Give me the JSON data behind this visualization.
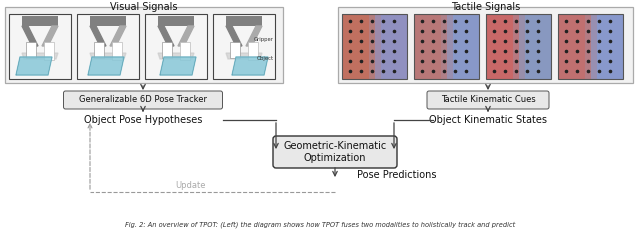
{
  "bg_color": "#ffffff",
  "visual_signals_label": "Visual Signals",
  "tactile_signals_label": "Tactile Signals",
  "gen_tracker_label": "Generalizable 6D Pose Tracker",
  "tactile_kinematic_label": "Tactile Kinematic Cues",
  "obj_pose_hyp_label": "Object Pose Hypotheses",
  "obj_kinematic_label": "Object Kinematic States",
  "geo_kinematic_label": "Geometric-Kinematic\nOptimization",
  "pose_pred_label": "Pose Predictions",
  "update_label": "Update",
  "caption": "Fig. 2: An overview of TPOT: (Left) the diagram shows how TPOT fuses two modalities to holistically track and predict",
  "arrow_color": "#444444",
  "dashed_color": "#999999",
  "text_color": "#111111",
  "box_fc": "#e8e8e8",
  "box_ec": "#555555",
  "vs_outer_fc": "#f2f2f2",
  "vs_outer_ec": "#aaaaaa",
  "sub_fc": "#f0f0f0",
  "sub_ec": "#444444",
  "gripper_dark": "#808080",
  "gripper_mid": "#aaaaaa",
  "gripper_light": "#cccccc",
  "obj_fc": "#88c8d8",
  "obj_ec": "#5599aa",
  "tac_colors": [
    [
      "#c07060",
      "#9090c0"
    ],
    [
      "#b87878",
      "#8898c8"
    ],
    [
      "#c86868",
      "#8898c0"
    ],
    [
      "#c07070",
      "#8898cc"
    ]
  ],
  "dot_color": "#222222"
}
